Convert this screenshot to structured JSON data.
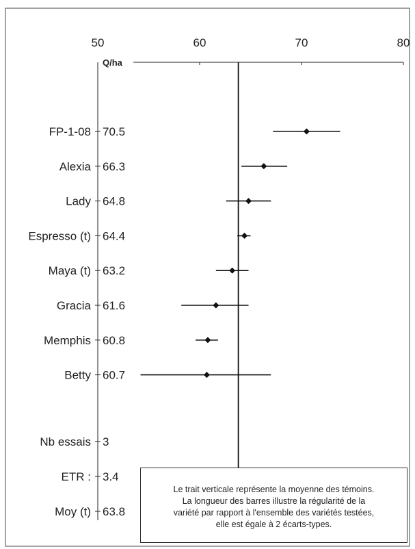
{
  "chart_data": {
    "type": "dot-range",
    "unit_label": "Q/ha",
    "x_ticks": [
      50,
      60,
      70,
      80
    ],
    "xlim": [
      50,
      80
    ],
    "reference_line": 63.8,
    "items": [
      {
        "name": "FP-1-08",
        "value_label": "70.5",
        "value": 70.5,
        "low": 67.2,
        "high": 73.8
      },
      {
        "name": "Alexia",
        "value_label": "66.3",
        "value": 66.3,
        "low": 64.1,
        "high": 68.6
      },
      {
        "name": "Lady",
        "value_label": "64.8",
        "value": 64.8,
        "low": 62.6,
        "high": 67.0
      },
      {
        "name": "Espresso (t)",
        "value_label": "64.4",
        "value": 64.4,
        "low": 63.7,
        "high": 65.0
      },
      {
        "name": "Maya (t)",
        "value_label": "63.2",
        "value": 63.2,
        "low": 61.6,
        "high": 64.8
      },
      {
        "name": "Gracia",
        "value_label": "61.6",
        "value": 61.6,
        "low": 58.2,
        "high": 64.8
      },
      {
        "name": "Memphis",
        "value_label": "60.8",
        "value": 60.8,
        "low": 59.6,
        "high": 61.8
      },
      {
        "name": "Betty",
        "value_label": "60.7",
        "value": 60.7,
        "low": 54.2,
        "high": 67.0
      }
    ],
    "stats": [
      {
        "name": "Nb essais",
        "value_label": "3"
      },
      {
        "name": "ETR :",
        "value_label": "3.4"
      },
      {
        "name": "Moy (t)",
        "value_label": "63.8"
      }
    ],
    "note_lines": [
      "Le trait verticale représente la moyenne des témoins.",
      "La longueur des barres illustre la régularité de la",
      "variété par rapport à l'ensemble des variétés testées,",
      "elle est égale à 2 écarts-types."
    ]
  }
}
